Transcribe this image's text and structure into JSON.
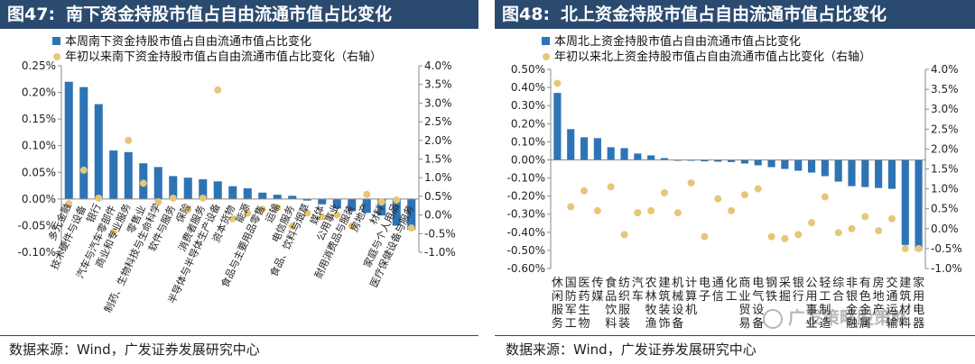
{
  "left_panel": {
    "fig_label": "图47:",
    "title": "南下资金持股市值占自由流通市值占比变化",
    "source": "数据来源：Wind，广发证券发展研究中心"
  },
  "right_panel": {
    "fig_label": "图48:",
    "title": "北上资金持股市值占自由流通市值占比变化",
    "source": "数据来源：Wind，广发证券发展研究中心",
    "watermark": "广发策略股策略"
  },
  "colors": {
    "bar": "#2e74b5",
    "dot": "#e6c679",
    "title_bg": "#2b4a70"
  },
  "chart_data": [
    {
      "type": "bar",
      "title": "南下资金持股市值占自由流通市值占比变化",
      "legend": [
        "本周南下资金持股市值占自由流通市值占比变化",
        "年初以来南下资金持股市值占自由流通市值占比变化（右轴）"
      ],
      "categories": [
        "多元金融",
        "技术硬件与设备",
        "银行",
        "汽车与汽车零部件",
        "商业和专业服务",
        "零售业",
        "制药、生物科技与生命科学",
        "软件与服务",
        "保险",
        "消费者服务",
        "半导体与半导体生产设备",
        "资本货物",
        "能源",
        "食品与主要用品零售",
        "运输",
        "电信服务",
        "食品、饮料与烟草",
        "媒体",
        "公用事业",
        "耐用消费品与服装",
        "房地产",
        "材料",
        "家庭与个人用品",
        "医疗保健设备与服务"
      ],
      "series": [
        {
          "name": "本周南下资金持股市值占自由流通市值占比变化",
          "axis": "left",
          "values": [
            0.22,
            0.21,
            0.178,
            0.091,
            0.088,
            0.067,
            0.06,
            0.043,
            0.04,
            0.037,
            0.033,
            0.024,
            0.02,
            0.012,
            0.008,
            0.006,
            -0.003,
            -0.01,
            -0.018,
            -0.023,
            -0.026,
            -0.031,
            -0.05,
            -0.058
          ]
        },
        {
          "name": "年初以来南下资金持股市值占自由流通市值占比变化（右轴）",
          "axis": "right",
          "values": [
            0.3,
            1.2,
            0.45,
            -0.45,
            2.0,
            0.85,
            0.35,
            0.45,
            0.15,
            0.45,
            3.35,
            -0.1,
            0.05,
            0.15,
            0.2,
            -0.3,
            0.05,
            -0.05,
            0.0,
            -0.3,
            0.55,
            0.35,
            0.4,
            -0.35
          ]
        }
      ],
      "ylim_left": [
        -0.1,
        0.25
      ],
      "yticks_left": [
        "0.25%",
        "0.20%",
        "0.15%",
        "0.10%",
        "0.05%",
        "0.00%",
        "-0.05%",
        "-0.10%"
      ],
      "ylim_right": [
        -1.0,
        4.0
      ],
      "yticks_right": [
        "4.0%",
        "3.5%",
        "3.0%",
        "2.5%",
        "2.0%",
        "1.5%",
        "1.0%",
        "0.5%",
        "0.0%",
        "-0.5%",
        "-1.0%"
      ]
    },
    {
      "type": "bar",
      "title": "北上资金持股市值占自由流通市值占比变化",
      "legend": [
        "本周北上资金持股市值占自由流通市值占比变化",
        "年初以来北上资金持股市值占自由流通市值占比变化（右轴）"
      ],
      "categories": [
        "休闲服务",
        "国防军工",
        "医药生物",
        "传媒",
        "食品饮料",
        "纺织服装",
        "汽车",
        "农林牧渔",
        "建筑装饰",
        "机械设备",
        "计算机",
        "电子",
        "通信",
        "化工",
        "商业贸易",
        "电气设备",
        "钢铁",
        "采掘",
        "银行",
        "公用事业",
        "轻工制造",
        "综合",
        "非银金融",
        "有色金属",
        "房地产",
        "交通运输",
        "建筑材料",
        "家用电器"
      ],
      "series": [
        {
          "name": "本周北上资金持股市值占自由流通市值占比变化",
          "axis": "left",
          "values": [
            0.37,
            0.17,
            0.125,
            0.12,
            0.07,
            0.065,
            0.035,
            0.025,
            0.01,
            -0.003,
            -0.005,
            -0.008,
            -0.01,
            -0.012,
            -0.02,
            -0.03,
            -0.04,
            -0.05,
            -0.06,
            -0.07,
            -0.09,
            -0.12,
            -0.145,
            -0.15,
            -0.155,
            -0.16,
            -0.47,
            -0.5
          ]
        },
        {
          "name": "年初以来北上资金持股市值占自由流通市值占比变化（右轴）",
          "axis": "right",
          "values": [
            3.65,
            0.55,
            0.95,
            0.45,
            1.05,
            -0.15,
            0.4,
            0.45,
            0.9,
            0.4,
            1.15,
            -0.2,
            0.75,
            0.45,
            0.85,
            1.0,
            -0.2,
            -0.25,
            -0.15,
            0.15,
            0.8,
            -0.1,
            0.0,
            0.3,
            -0.05,
            0.25,
            -0.5,
            -0.5
          ]
        }
      ],
      "ylim_left": [
        -0.6,
        0.5
      ],
      "yticks_left": [
        "0.50%",
        "0.40%",
        "0.30%",
        "0.20%",
        "0.10%",
        "0.00%",
        "-0.10%",
        "-0.20%",
        "-0.30%",
        "-0.40%",
        "-0.50%",
        "-0.60%"
      ],
      "ylim_right": [
        -1.0,
        4.0
      ],
      "yticks_right": [
        "4.0%",
        "3.5%",
        "3.0%",
        "2.5%",
        "2.0%",
        "1.5%",
        "1.0%",
        "0.5%",
        "0.0%",
        "-0.5%",
        "-1.0%"
      ]
    }
  ]
}
